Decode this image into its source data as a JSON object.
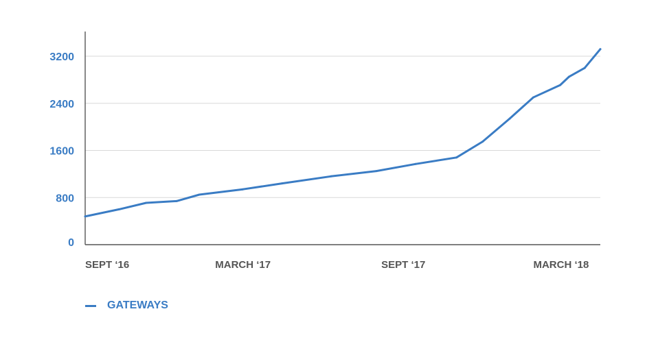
{
  "chart_data": {
    "type": "line",
    "title": "",
    "xlabel": "",
    "ylabel": "",
    "x_range": [
      "2016-09-01",
      "2018-04-15"
    ],
    "ylim": [
      0,
      3600
    ],
    "y_ticks": [
      0,
      800,
      1600,
      2400,
      3200
    ],
    "x_tick_labels": [
      {
        "label": "SEPT ‘16",
        "date": "2016-09-01"
      },
      {
        "label": "MARCH ‘17",
        "date": "2017-03-01"
      },
      {
        "label": "SEPT ‘17",
        "date": "2017-09-01"
      },
      {
        "label": "MARCH ‘18",
        "date": "2018-03-01"
      }
    ],
    "grid": "horizontal",
    "legend_position": "bottom-left",
    "series": [
      {
        "name": "GATEWAYS",
        "color": "#3a7cc4",
        "points": [
          {
            "x": "2016-09-01",
            "y": 480
          },
          {
            "x": "2016-10-10",
            "y": 600
          },
          {
            "x": "2016-11-10",
            "y": 710
          },
          {
            "x": "2016-12-15",
            "y": 740
          },
          {
            "x": "2017-01-10",
            "y": 850
          },
          {
            "x": "2017-03-01",
            "y": 940
          },
          {
            "x": "2017-04-15",
            "y": 1040
          },
          {
            "x": "2017-06-10",
            "y": 1160
          },
          {
            "x": "2017-08-01",
            "y": 1250
          },
          {
            "x": "2017-09-15",
            "y": 1370
          },
          {
            "x": "2017-11-01",
            "y": 1480
          },
          {
            "x": "2017-12-01",
            "y": 1750
          },
          {
            "x": "2018-01-01",
            "y": 2140
          },
          {
            "x": "2018-01-28",
            "y": 2500
          },
          {
            "x": "2018-02-28",
            "y": 2710
          },
          {
            "x": "2018-03-10",
            "y": 2850
          },
          {
            "x": "2018-03-28",
            "y": 3000
          },
          {
            "x": "2018-04-15",
            "y": 3320
          }
        ]
      }
    ]
  }
}
